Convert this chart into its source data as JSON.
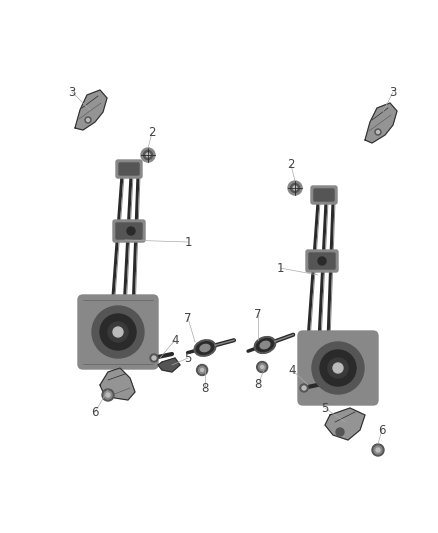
{
  "background_color": "#ffffff",
  "fig_width": 4.38,
  "fig_height": 5.33,
  "dpi": 100,
  "label_fontsize": 8.5,
  "label_color": "#444444",
  "line_color": "#aaaaaa",
  "line_width": 0.5,
  "part_color_dark": "#2a2a2a",
  "part_color_mid": "#555555",
  "part_color_light": "#888888",
  "part_color_vlight": "#bbbbbb",
  "part_lw": 0.8
}
